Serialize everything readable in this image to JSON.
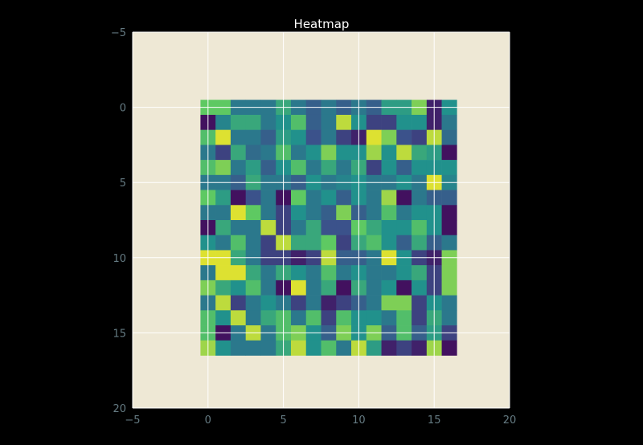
{
  "chart_data": {
    "type": "heatmap",
    "title": "Heatmap",
    "xlabel": "",
    "ylabel": "",
    "xlim": [
      -5,
      20
    ],
    "ylim": [
      20,
      -5
    ],
    "x_ticks": [
      -5,
      0,
      5,
      10,
      15,
      20
    ],
    "y_ticks": [
      -5,
      0,
      5,
      10,
      15,
      20
    ],
    "x_tick_labels": [
      "−5",
      "0",
      "5",
      "10",
      "15",
      "20"
    ],
    "y_tick_labels": [
      "−5",
      "0",
      "5",
      "10",
      "15",
      "20"
    ],
    "y_axis_inverted": true,
    "grid": true,
    "colormap": "viridis",
    "value_range": [
      0,
      1
    ],
    "rows": 17,
    "cols": 17,
    "values": [
      [
        0.75,
        0.75,
        0.4,
        0.4,
        0.4,
        0.6,
        0.4,
        0.3,
        0.4,
        0.3,
        0.4,
        0.3,
        0.55,
        0.55,
        0.8,
        0.1,
        0.5
      ],
      [
        0.05,
        0.45,
        0.6,
        0.6,
        0.4,
        0.5,
        0.7,
        0.3,
        0.4,
        0.9,
        0.5,
        0.2,
        0.2,
        0.5,
        0.5,
        0.1,
        0.4
      ],
      [
        0.7,
        0.95,
        0.4,
        0.4,
        0.3,
        0.55,
        0.5,
        0.25,
        0.4,
        0.2,
        0.1,
        0.95,
        0.8,
        0.25,
        0.2,
        0.9,
        0.35
      ],
      [
        0.4,
        0.2,
        0.6,
        0.35,
        0.4,
        0.7,
        0.4,
        0.5,
        0.8,
        0.5,
        0.5,
        0.85,
        0.5,
        0.9,
        0.6,
        0.55,
        0.05
      ],
      [
        0.7,
        0.8,
        0.4,
        0.55,
        0.3,
        0.5,
        0.7,
        0.4,
        0.6,
        0.4,
        0.6,
        0.2,
        0.5,
        0.3,
        0.5,
        0.5,
        0.5
      ],
      [
        0.4,
        0.4,
        0.3,
        0.6,
        0.4,
        0.4,
        0.3,
        0.5,
        0.4,
        0.45,
        0.5,
        0.4,
        0.4,
        0.5,
        0.4,
        0.95,
        0.45
      ],
      [
        0.75,
        0.55,
        0.05,
        0.25,
        0.4,
        0.05,
        0.75,
        0.4,
        0.5,
        0.3,
        0.5,
        0.4,
        0.85,
        0.05,
        0.4,
        0.3,
        0.3
      ],
      [
        0.4,
        0.4,
        0.95,
        0.75,
        0.4,
        0.2,
        0.5,
        0.4,
        0.3,
        0.8,
        0.3,
        0.4,
        0.7,
        0.4,
        0.5,
        0.5,
        0.05
      ],
      [
        0.05,
        0.6,
        0.4,
        0.4,
        0.9,
        0.2,
        0.4,
        0.6,
        0.25,
        0.25,
        0.75,
        0.6,
        0.5,
        0.5,
        0.7,
        0.5,
        0.05
      ],
      [
        0.5,
        0.4,
        0.7,
        0.4,
        0.2,
        0.9,
        0.6,
        0.6,
        0.75,
        0.2,
        0.6,
        0.7,
        0.5,
        0.3,
        0.6,
        0.3,
        0.4
      ],
      [
        0.95,
        0.95,
        0.6,
        0.4,
        0.2,
        0.2,
        0.1,
        0.2,
        0.9,
        0.3,
        0.3,
        0.4,
        0.95,
        0.5,
        0.2,
        0.1,
        0.8
      ],
      [
        0.4,
        0.95,
        0.95,
        0.6,
        0.4,
        0.6,
        0.5,
        0.4,
        0.7,
        0.4,
        0.5,
        0.4,
        0.4,
        0.5,
        0.6,
        0.2,
        0.8
      ],
      [
        0.8,
        0.6,
        0.5,
        0.7,
        0.4,
        0.05,
        0.95,
        0.4,
        0.6,
        0.05,
        0.6,
        0.4,
        0.5,
        0.05,
        0.5,
        0.2,
        0.8
      ],
      [
        0.4,
        0.9,
        0.2,
        0.4,
        0.5,
        0.4,
        0.2,
        0.4,
        0.1,
        0.2,
        0.3,
        0.4,
        0.8,
        0.8,
        0.2,
        0.5,
        0.4
      ],
      [
        0.7,
        0.5,
        0.9,
        0.4,
        0.6,
        0.7,
        0.4,
        0.7,
        0.2,
        0.7,
        0.5,
        0.5,
        0.4,
        0.7,
        0.2,
        0.6,
        0.4
      ],
      [
        0.7,
        0.05,
        0.4,
        0.9,
        0.4,
        0.7,
        0.8,
        0.5,
        0.3,
        0.8,
        0.5,
        0.8,
        0.3,
        0.7,
        0.3,
        0.55,
        0.2
      ],
      [
        0.85,
        0.5,
        0.4,
        0.4,
        0.4,
        0.6,
        0.9,
        0.5,
        0.7,
        0.4,
        0.9,
        0.55,
        0.1,
        0.2,
        0.1,
        0.85,
        0.05
      ]
    ]
  },
  "colors": {
    "figure_background": "#000000",
    "axes_background": "#eee8d5",
    "grid": "#ffffff",
    "tick_label": "#657b83",
    "title": "#ffffff"
  }
}
